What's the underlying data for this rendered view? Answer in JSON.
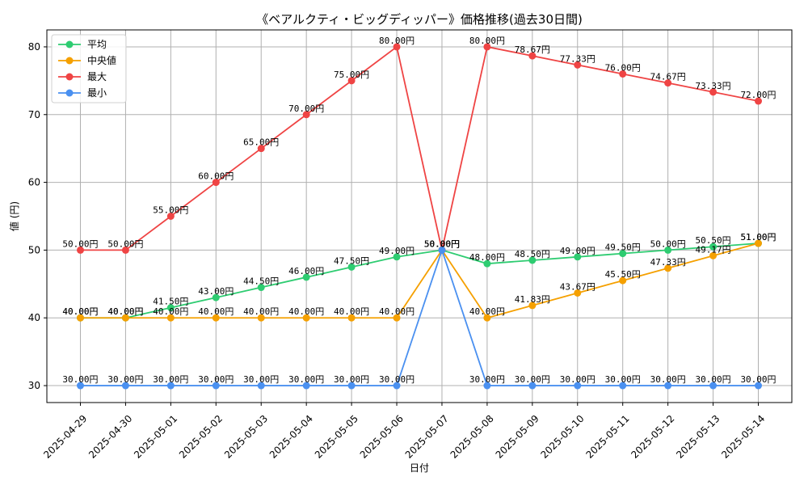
{
  "chart_data": {
    "type": "line",
    "title": "《ベアルクティ・ビッグディッパー》価格推移(過去30日間)",
    "xlabel": "日付",
    "ylabel": "値 (円)",
    "ylim": [
      27.5,
      82.5
    ],
    "yticks": [
      30,
      40,
      50,
      60,
      70,
      80
    ],
    "grid": true,
    "legend_position": "top-left",
    "categories": [
      "2025-04-29",
      "2025-04-30",
      "2025-05-01",
      "2025-05-02",
      "2025-05-03",
      "2025-05-04",
      "2025-05-05",
      "2025-05-06",
      "2025-05-07",
      "2025-05-08",
      "2025-05-09",
      "2025-05-10",
      "2025-05-11",
      "2025-05-12",
      "2025-05-13",
      "2025-05-14"
    ],
    "series": [
      {
        "name": "平均",
        "color": "#2ecc71",
        "values": [
          40.0,
          40.0,
          41.5,
          43.0,
          44.5,
          46.0,
          47.5,
          49.0,
          50.0,
          48.0,
          48.5,
          49.0,
          49.5,
          50.0,
          50.5,
          51.0
        ],
        "labels": [
          "40.00円",
          "40.00円",
          "41.50円",
          "43.00円",
          "44.50円",
          "46.00円",
          "47.50円",
          "49.00円",
          "50.00円",
          "48.00円",
          "48.50円",
          "49.00円",
          "49.50円",
          "50.00円",
          "50.50円",
          "51.00円"
        ]
      },
      {
        "name": "中央値",
        "color": "#f5a000",
        "values": [
          40.0,
          40.0,
          40.0,
          40.0,
          40.0,
          40.0,
          40.0,
          40.0,
          50.0,
          40.0,
          41.83,
          43.67,
          45.5,
          47.33,
          49.17,
          51.0
        ],
        "labels": [
          "40.00円",
          "40.00円",
          "40.00円",
          "40.00円",
          "40.00円",
          "40.00円",
          "40.00円",
          "40.00円",
          "50.00円",
          "40.00円",
          "41.83円",
          "43.67円",
          "45.50円",
          "47.33円",
          "49.17円",
          "51.00円"
        ]
      },
      {
        "name": "最大",
        "color": "#ef4444",
        "values": [
          50.0,
          50.0,
          55.0,
          60.0,
          65.0,
          70.0,
          75.0,
          80.0,
          50.0,
          80.0,
          78.67,
          77.33,
          76.0,
          74.67,
          73.33,
          72.0
        ],
        "labels": [
          "50.00円",
          "50.00円",
          "55.00円",
          "60.00円",
          "65.00円",
          "70.00円",
          "75.00円",
          "80.00円",
          "50.00円",
          "80.00円",
          "78.67円",
          "77.33円",
          "76.00円",
          "74.67円",
          "73.33円",
          "72.00円"
        ]
      },
      {
        "name": "最小",
        "color": "#4a90f0",
        "values": [
          30.0,
          30.0,
          30.0,
          30.0,
          30.0,
          30.0,
          30.0,
          30.0,
          50.0,
          30.0,
          30.0,
          30.0,
          30.0,
          30.0,
          30.0,
          30.0
        ],
        "labels": [
          "30.00円",
          "30.00円",
          "30.00円",
          "30.00円",
          "30.00円",
          "30.00円",
          "30.00円",
          "30.00円",
          "50.00円",
          "30.00円",
          "30.00円",
          "30.00円",
          "30.00円",
          "30.00円",
          "30.00円",
          "30.00円"
        ]
      }
    ]
  }
}
